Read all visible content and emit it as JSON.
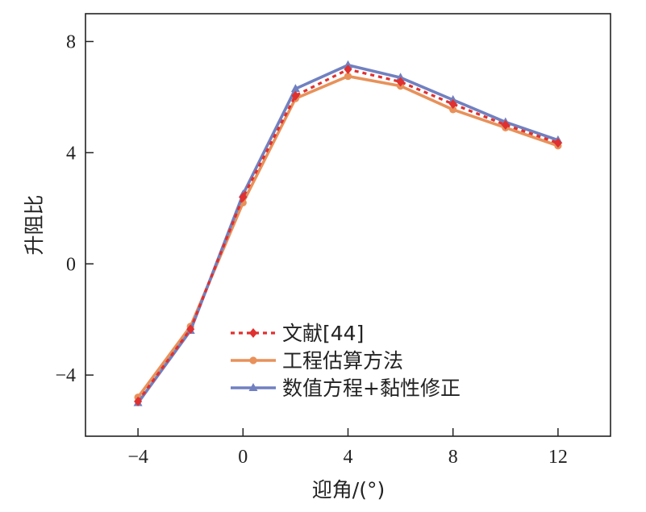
{
  "chart_data": {
    "type": "line",
    "xlabel": "迎角/(°)",
    "ylabel": "升阻比",
    "xlim": [
      -6,
      14
    ],
    "ylim": [
      -6.2,
      9
    ],
    "xticks": [
      -4,
      0,
      4,
      8,
      12
    ],
    "yticks": [
      -4,
      0,
      4,
      8
    ],
    "legend_position": "lower-center",
    "series": [
      {
        "name": "文献[44]",
        "color": "#e03030",
        "style": "dotted",
        "marker": "diamond",
        "x": [
          -4,
          -2,
          0,
          2,
          4,
          6,
          8,
          10,
          12
        ],
        "y": [
          -4.95,
          -2.35,
          2.4,
          6.05,
          7.0,
          6.55,
          5.75,
          5.0,
          4.35
        ]
      },
      {
        "name": "工程估算方法",
        "color": "#e8915a",
        "style": "solid",
        "marker": "circle",
        "x": [
          -4,
          -2,
          0,
          2,
          4,
          6,
          8,
          10,
          12
        ],
        "y": [
          -4.8,
          -2.25,
          2.2,
          5.95,
          6.75,
          6.4,
          5.55,
          4.9,
          4.25
        ]
      },
      {
        "name": "数值方程+黏性修正",
        "color": "#7080c0",
        "style": "solid",
        "marker": "triangle",
        "x": [
          -4,
          -2,
          0,
          2,
          4,
          6,
          8,
          10,
          12
        ],
        "y": [
          -5.0,
          -2.4,
          2.5,
          6.3,
          7.15,
          6.7,
          5.9,
          5.1,
          4.45
        ]
      }
    ]
  }
}
